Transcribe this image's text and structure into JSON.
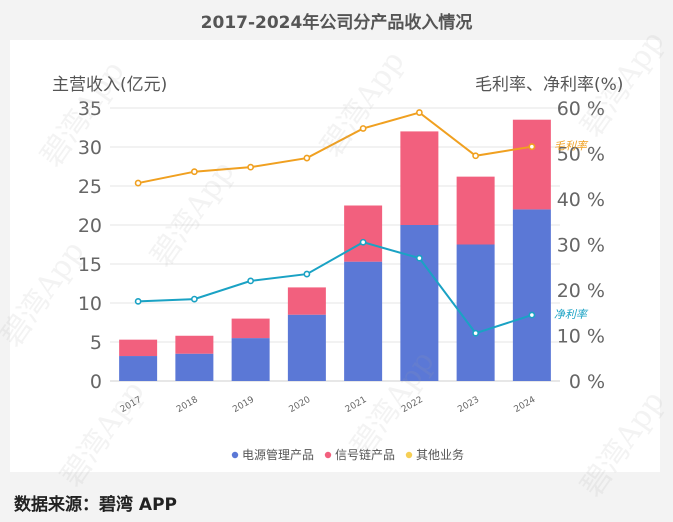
{
  "chart_data": {
    "type": "bar",
    "title": "2017-2024年公司分产品收入情况",
    "categories": [
      "2017",
      "2018",
      "2019",
      "2020",
      "2021",
      "2022",
      "2023",
      "2024"
    ],
    "ylabel_left": "主营收入(亿元)",
    "ylabel_right": "毛利率、净利率(%)",
    "ylim_left": [
      0,
      35
    ],
    "yticks_left": [
      "0",
      "5",
      "10",
      "15",
      "20",
      "25",
      "30",
      "35"
    ],
    "ylim_right": [
      0,
      60
    ],
    "yticks_right": [
      "0 %",
      "10 %",
      "20 %",
      "30 %",
      "40 %",
      "50 %",
      "60 %"
    ],
    "series": [
      {
        "name": "电源管理产品",
        "kind": "bar",
        "color": "#5b78d6",
        "values": [
          3.2,
          3.5,
          5.5,
          8.5,
          15.3,
          20.0,
          17.5,
          22.0
        ]
      },
      {
        "name": "信号链产品",
        "kind": "bar",
        "color": "#f2607e",
        "values": [
          2.1,
          2.3,
          2.5,
          3.5,
          7.2,
          12.0,
          8.7,
          11.5
        ]
      },
      {
        "name": "毛利率",
        "kind": "line",
        "axis": "right",
        "color": "#f0a020",
        "values": [
          43.5,
          46.0,
          47.0,
          49.0,
          55.5,
          59.0,
          49.5,
          51.5
        ]
      },
      {
        "name": "净利率",
        "kind": "line",
        "axis": "right",
        "color": "#1aa2c4",
        "values": [
          17.5,
          18.0,
          22.0,
          23.5,
          30.5,
          27.0,
          10.5,
          14.5
        ]
      }
    ],
    "line_labels": [
      "毛利率",
      "净利率"
    ],
    "legend": [
      {
        "name": "电源管理产品",
        "color": "#5b78d6"
      },
      {
        "name": "信号链产品",
        "color": "#f2607e"
      },
      {
        "name": "其他业务",
        "color": "#f6cf55"
      }
    ],
    "legend_position": "bottom"
  },
  "source": "数据来源：碧湾 APP",
  "watermark": "碧湾App"
}
